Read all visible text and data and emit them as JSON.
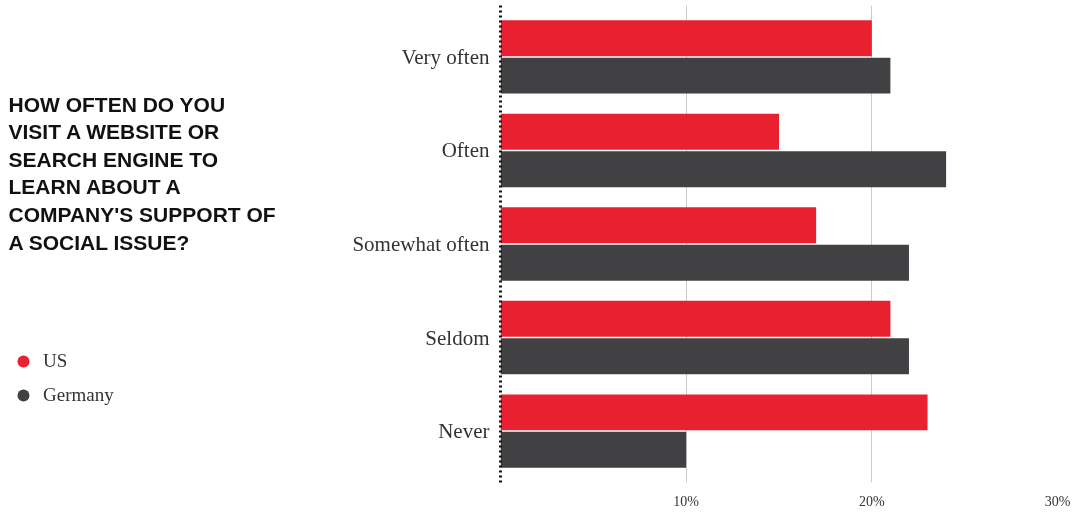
{
  "chart_data": {
    "type": "bar",
    "orientation": "horizontal",
    "title": "HOW OFTEN DO YOU VISIT A WEBSITE OR SEARCH ENGINE TO LEARN ABOUT A COMPANY'S SUPPORT OF A SOCIAL ISSUE?",
    "categories": [
      "Very often",
      "Often",
      "Somewhat often",
      "Seldom",
      "Never"
    ],
    "series": [
      {
        "name": "US",
        "color": "#e8202f",
        "values": [
          20,
          15,
          17,
          21,
          23
        ]
      },
      {
        "name": "Germany",
        "color": "#414042",
        "values": [
          21,
          24,
          22,
          22,
          10
        ]
      }
    ],
    "xlim": [
      0,
      30
    ],
    "xticks": [
      {
        "value": 10,
        "label": "10%"
      },
      {
        "value": 20,
        "label": "20%"
      },
      {
        "value": 30,
        "label": "30%"
      }
    ],
    "grid": "x",
    "legend": "bottom left"
  }
}
